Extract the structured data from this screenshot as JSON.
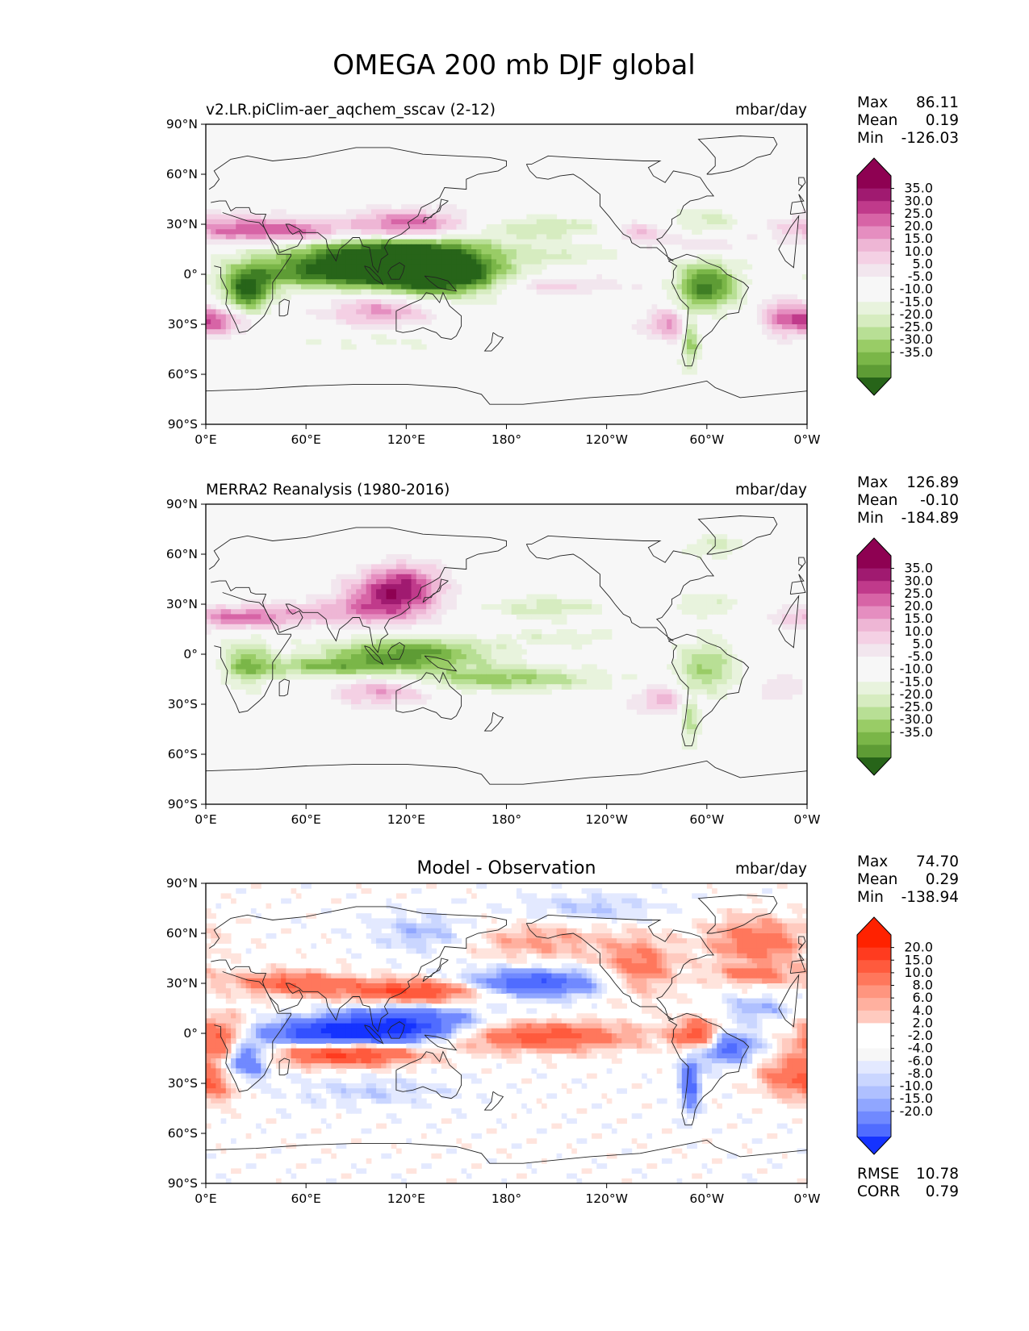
{
  "title": "OMEGA 200 mb DJF global",
  "colors": {
    "div_pos": [
      "#f2e6ee",
      "#f4d0e4",
      "#eeb6d5",
      "#e58ec0",
      "#d764a6",
      "#c03a8b",
      "#a01a70",
      "#8e0152"
    ],
    "div_neg": [
      "#e8f3dd",
      "#d6ecc0",
      "#b8df95",
      "#99cc66",
      "#7ab648",
      "#5e9c35",
      "#3f7e24",
      "#276419"
    ],
    "diff_pos": [
      "#ffe4dd",
      "#ffcabf",
      "#ffb09f",
      "#ff957f",
      "#ff775c",
      "#ff5a3d",
      "#ff3b1f",
      "#ff2200"
    ],
    "diff_neg": [
      "#e3e9ff",
      "#cad6ff",
      "#afc0ff",
      "#90a6ff",
      "#7089ff",
      "#506cff",
      "#3350ff",
      "#1533ff"
    ]
  },
  "chart_data": [
    {
      "type": "heatmap",
      "subtitle": "v2.LR.piClim-aer_aqchem_sscav (2-12)",
      "units": "mbar/day",
      "stats": {
        "max_label": "Max",
        "max": "86.11",
        "mean_label": "Mean",
        "mean": "0.19",
        "min_label": "Min",
        "min": "-126.03"
      },
      "colorbar_levels": [
        "35.0",
        "30.0",
        "25.0",
        "20.0",
        "15.0",
        "10.0",
        "5.0",
        "-5.0",
        "-10.0",
        "-15.0",
        "-20.0",
        "-25.0",
        "-30.0",
        "-35.0"
      ],
      "colormap": "PiYG_r",
      "xticks": [
        "0°E",
        "60°E",
        "120°E",
        "180°",
        "120°W",
        "60°W",
        "0°W"
      ],
      "yticks": [
        "90°N",
        "60°N",
        "30°N",
        "0°",
        "30°S",
        "60°S",
        "90°S"
      ],
      "xlim": [
        0,
        360
      ],
      "ylim": [
        -90,
        90
      ],
      "features": [
        {
          "lon": 100,
          "lat": 12,
          "w": 45,
          "h": 10,
          "v": -38
        },
        {
          "lon": 130,
          "lat": 5,
          "w": 26,
          "h": 11,
          "v": -40
        },
        {
          "lon": 75,
          "lat": 0,
          "w": 35,
          "h": 6,
          "v": -28
        },
        {
          "lon": 150,
          "lat": -3,
          "w": 24,
          "h": 7,
          "v": -25
        },
        {
          "lon": 25,
          "lat": -10,
          "w": 10,
          "h": 9,
          "v": -42
        },
        {
          "lon": 300,
          "lat": -7,
          "w": 13,
          "h": 10,
          "v": -38
        },
        {
          "lon": 290,
          "lat": -38,
          "w": 4,
          "h": 12,
          "v": -28
        },
        {
          "lon": 205,
          "lat": 28,
          "w": 25,
          "h": 5,
          "v": -14
        },
        {
          "lon": 300,
          "lat": 32,
          "w": 16,
          "h": 5,
          "v": -12
        },
        {
          "lon": 215,
          "lat": 12,
          "w": 30,
          "h": 4,
          "v": -9
        },
        {
          "lon": 100,
          "lat": -40,
          "w": 40,
          "h": 5,
          "v": -6
        },
        {
          "lon": 120,
          "lat": 28,
          "w": 25,
          "h": 7,
          "v": 38
        },
        {
          "lon": 20,
          "lat": 27,
          "w": 25,
          "h": 6,
          "v": 28
        },
        {
          "lon": 60,
          "lat": 25,
          "w": 20,
          "h": 5,
          "v": 25
        },
        {
          "lon": 105,
          "lat": -22,
          "w": 22,
          "h": 7,
          "v": 22
        },
        {
          "lon": 5,
          "lat": -28,
          "w": 14,
          "h": 6,
          "v": 28
        },
        {
          "lon": 280,
          "lat": -30,
          "w": 12,
          "h": 7,
          "v": 22
        },
        {
          "lon": 205,
          "lat": -7,
          "w": 35,
          "h": 4,
          "v": 12
        },
        {
          "lon": 260,
          "lat": 25,
          "w": 12,
          "h": 5,
          "v": 15
        },
        {
          "lon": 345,
          "lat": -25,
          "w": 10,
          "h": 8,
          "v": 18
        },
        {
          "lon": 300,
          "lat": 18,
          "w": 20,
          "h": 4,
          "v": 9
        }
      ]
    },
    {
      "type": "heatmap",
      "subtitle": "MERRA2 Reanalysis (1980-2016)",
      "units": "mbar/day",
      "stats": {
        "max_label": "Max",
        "max": "126.89",
        "mean_label": "Mean",
        "mean": "-0.10",
        "min_label": "Min",
        "min": "-184.89"
      },
      "colorbar_levels": [
        "35.0",
        "30.0",
        "25.0",
        "20.0",
        "15.0",
        "10.0",
        "5.0",
        "-5.0",
        "-10.0",
        "-15.0",
        "-20.0",
        "-25.0",
        "-30.0",
        "-35.0"
      ],
      "colormap": "PiYG_r",
      "xticks": [
        "0°E",
        "60°E",
        "120°E",
        "180°",
        "120°W",
        "60°W",
        "0°W"
      ],
      "yticks": [
        "90°N",
        "60°N",
        "30°N",
        "0°",
        "30°S",
        "60°S",
        "90°S"
      ],
      "xlim": [
        0,
        360
      ],
      "ylim": [
        -90,
        90
      ],
      "features": [
        {
          "lon": 110,
          "lat": 33,
          "w": 20,
          "h": 10,
          "v": 33
        },
        {
          "lon": 120,
          "lat": 45,
          "w": 15,
          "h": 8,
          "v": 18
        },
        {
          "lon": 20,
          "lat": 22,
          "w": 25,
          "h": 5,
          "v": 25
        },
        {
          "lon": 70,
          "lat": 25,
          "w": 25,
          "h": 5,
          "v": 12
        },
        {
          "lon": 105,
          "lat": -22,
          "w": 20,
          "h": 6,
          "v": 20
        },
        {
          "lon": 275,
          "lat": -27,
          "w": 13,
          "h": 6,
          "v": 18
        },
        {
          "lon": 345,
          "lat": -20,
          "w": 10,
          "h": 6,
          "v": 10
        },
        {
          "lon": 120,
          "lat": 0,
          "w": 35,
          "h": 7,
          "v": -33
        },
        {
          "lon": 70,
          "lat": -8,
          "w": 30,
          "h": 4,
          "v": -20
        },
        {
          "lon": 180,
          "lat": -15,
          "w": 40,
          "h": 5,
          "v": -22
        },
        {
          "lon": 25,
          "lat": -5,
          "w": 10,
          "h": 10,
          "v": -22
        },
        {
          "lon": 300,
          "lat": -8,
          "w": 13,
          "h": 12,
          "v": -20
        },
        {
          "lon": 205,
          "lat": 28,
          "w": 25,
          "h": 5,
          "v": -13
        },
        {
          "lon": 305,
          "lat": 65,
          "w": 12,
          "h": 5,
          "v": -12
        },
        {
          "lon": 300,
          "lat": 30,
          "w": 15,
          "h": 5,
          "v": -10
        },
        {
          "lon": 215,
          "lat": 10,
          "w": 25,
          "h": 4,
          "v": -9
        },
        {
          "lon": 290,
          "lat": -38,
          "w": 4,
          "h": 12,
          "v": -18
        }
      ]
    },
    {
      "type": "heatmap",
      "subtitle": "Model - Observation",
      "units": "mbar/day",
      "stats": {
        "max_label": "Max",
        "max": "74.70",
        "mean_label": "Mean",
        "mean": "0.29",
        "min_label": "Min",
        "min": "-138.94"
      },
      "extra_stats": {
        "rmse_label": "RMSE",
        "rmse": "10.78",
        "corr_label": "CORR",
        "corr": "0.79"
      },
      "colorbar_levels": [
        "20.0",
        "15.0",
        "10.0",
        "8.0",
        "6.0",
        "4.0",
        "2.0",
        "-2.0",
        "-4.0",
        "-6.0",
        "-8.0",
        "-10.0",
        "-15.0",
        "-20.0"
      ],
      "colormap": "bwr",
      "xticks": [
        "0°E",
        "60°E",
        "120°E",
        "180°",
        "120°W",
        "60°W",
        "0°W"
      ],
      "yticks": [
        "90°N",
        "60°N",
        "30°N",
        "0°",
        "30°S",
        "60°S",
        "90°S"
      ],
      "xlim": [
        0,
        360
      ],
      "ylim": [
        -90,
        90
      ],
      "features": [
        {
          "lon": 75,
          "lat": 0,
          "w": 30,
          "h": 6,
          "v": -24
        },
        {
          "lon": 120,
          "lat": 5,
          "w": 30,
          "h": 8,
          "v": -22
        },
        {
          "lon": 195,
          "lat": 30,
          "w": 30,
          "h": 6,
          "v": -20
        },
        {
          "lon": 22,
          "lat": -15,
          "w": 10,
          "h": 9,
          "v": -22
        },
        {
          "lon": 310,
          "lat": -8,
          "w": 13,
          "h": 7,
          "v": -20
        },
        {
          "lon": 290,
          "lat": -30,
          "w": 4,
          "h": 12,
          "v": -18
        },
        {
          "lon": 130,
          "lat": 60,
          "w": 20,
          "h": 8,
          "v": -7
        },
        {
          "lon": 230,
          "lat": 75,
          "w": 30,
          "h": 6,
          "v": -6
        },
        {
          "lon": 330,
          "lat": 15,
          "w": 15,
          "h": 5,
          "v": -8
        },
        {
          "lon": 100,
          "lat": -35,
          "w": 35,
          "h": 6,
          "v": -5
        },
        {
          "lon": 85,
          "lat": -12,
          "w": 30,
          "h": 5,
          "v": 24
        },
        {
          "lon": 125,
          "lat": 25,
          "w": 30,
          "h": 5,
          "v": 22
        },
        {
          "lon": 50,
          "lat": 30,
          "w": 25,
          "h": 5,
          "v": 15
        },
        {
          "lon": 200,
          "lat": -2,
          "w": 40,
          "h": 6,
          "v": 18
        },
        {
          "lon": 295,
          "lat": -2,
          "w": 10,
          "h": 7,
          "v": 22
        },
        {
          "lon": 330,
          "lat": 55,
          "w": 20,
          "h": 10,
          "v": 14
        },
        {
          "lon": 10,
          "lat": -5,
          "w": 12,
          "h": 10,
          "v": 20
        },
        {
          "lon": 5,
          "lat": -30,
          "w": 12,
          "h": 8,
          "v": 12
        },
        {
          "lon": 260,
          "lat": 40,
          "w": 15,
          "h": 12,
          "v": 12
        },
        {
          "lon": 200,
          "lat": 55,
          "w": 30,
          "h": 8,
          "v": 8
        },
        {
          "lon": 345,
          "lat": -25,
          "w": 12,
          "h": 8,
          "v": 10
        },
        {
          "lon": 330,
          "lat": 35,
          "w": 20,
          "h": 4,
          "v": 10
        }
      ]
    }
  ]
}
